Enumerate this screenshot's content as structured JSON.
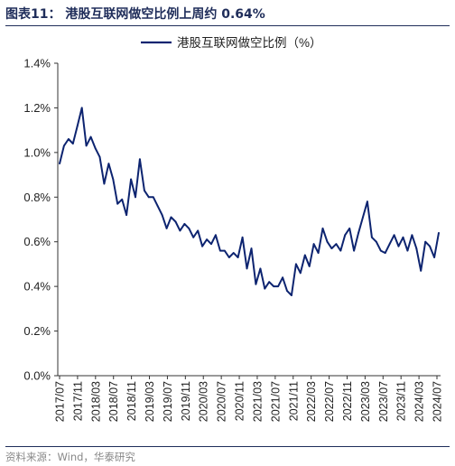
{
  "title": "图表11：  港股互联网做空比例上周约 0.64%",
  "source": "资料来源：Wind，华泰研究",
  "colors": {
    "line": "#0d2470",
    "axis": "#333333",
    "title": "#1f2d5a",
    "source": "#888888"
  },
  "chart_data": {
    "type": "line",
    "title": "图表11：  港股互联网做空比例上周约 0.64%",
    "xlabel": "",
    "ylabel": "",
    "ylim": [
      0,
      0.014
    ],
    "y_ticks": [
      "0.0%",
      "0.2%",
      "0.4%",
      "0.6%",
      "0.8%",
      "1.0%",
      "1.2%",
      "1.4%"
    ],
    "y_tick_values": [
      0,
      0.002,
      0.004,
      0.006,
      0.008,
      0.01,
      0.012,
      0.014
    ],
    "x_ticks": [
      "2017/07",
      "2017/11",
      "2018/03",
      "2018/07",
      "2018/11",
      "2019/03",
      "2019/07",
      "2019/11",
      "2020/03",
      "2020/07",
      "2020/11",
      "2021/03",
      "2021/07",
      "2021/11",
      "2022/03",
      "2022/07",
      "2022/11",
      "2023/03",
      "2023/07",
      "2023/11",
      "2024/03",
      "2024/07"
    ],
    "legend": {
      "position": "top-center",
      "entries": [
        "港股互联网做空比例（%）"
      ]
    },
    "grid": false,
    "series": [
      {
        "name": "港股互联网做空比例（%）",
        "x": [
          "2017/07",
          "2017/08",
          "2017/09",
          "2017/10",
          "2017/11",
          "2017/12",
          "2018/01",
          "2018/02",
          "2018/03",
          "2018/04",
          "2018/05",
          "2018/06",
          "2018/07",
          "2018/08",
          "2018/09",
          "2018/10",
          "2018/11",
          "2018/12",
          "2019/01",
          "2019/02",
          "2019/03",
          "2019/04",
          "2019/05",
          "2019/06",
          "2019/07",
          "2019/08",
          "2019/09",
          "2019/10",
          "2019/11",
          "2019/12",
          "2020/01",
          "2020/02",
          "2020/03",
          "2020/04",
          "2020/05",
          "2020/06",
          "2020/07",
          "2020/08",
          "2020/09",
          "2020/10",
          "2020/11",
          "2020/12",
          "2021/01",
          "2021/02",
          "2021/03",
          "2021/04",
          "2021/05",
          "2021/06",
          "2021/07",
          "2021/08",
          "2021/09",
          "2021/10",
          "2021/11",
          "2021/12",
          "2022/01",
          "2022/02",
          "2022/03",
          "2022/04",
          "2022/05",
          "2022/06",
          "2022/07",
          "2022/08",
          "2022/09",
          "2022/10",
          "2022/11",
          "2022/12",
          "2023/01",
          "2023/02",
          "2023/03",
          "2023/04",
          "2023/05",
          "2023/06",
          "2023/07",
          "2023/08",
          "2023/09",
          "2023/10",
          "2023/11",
          "2023/12",
          "2024/01",
          "2024/02",
          "2024/03",
          "2024/04",
          "2024/05",
          "2024/06",
          "2024/07",
          "2024/08"
        ],
        "values": [
          0.0095,
          0.0103,
          0.0106,
          0.0104,
          0.0112,
          0.012,
          0.0103,
          0.0107,
          0.0102,
          0.0098,
          0.0086,
          0.0095,
          0.0088,
          0.0077,
          0.0079,
          0.0072,
          0.0088,
          0.008,
          0.0097,
          0.0083,
          0.008,
          0.008,
          0.0076,
          0.0072,
          0.0066,
          0.0071,
          0.0069,
          0.0065,
          0.0068,
          0.0066,
          0.0062,
          0.0065,
          0.0058,
          0.0061,
          0.0059,
          0.0063,
          0.0056,
          0.0056,
          0.0053,
          0.0055,
          0.0053,
          0.0062,
          0.0048,
          0.0057,
          0.0041,
          0.0048,
          0.0039,
          0.0042,
          0.004,
          0.004,
          0.0044,
          0.0038,
          0.0036,
          0.005,
          0.0046,
          0.0054,
          0.0049,
          0.0059,
          0.0055,
          0.0066,
          0.006,
          0.0057,
          0.0059,
          0.0056,
          0.0063,
          0.0066,
          0.0056,
          0.0064,
          0.0071,
          0.0078,
          0.0062,
          0.006,
          0.0056,
          0.0055,
          0.0059,
          0.0063,
          0.0058,
          0.0062,
          0.0056,
          0.0063,
          0.0057,
          0.0047,
          0.006,
          0.0058,
          0.0053,
          0.0064
        ]
      }
    ]
  }
}
